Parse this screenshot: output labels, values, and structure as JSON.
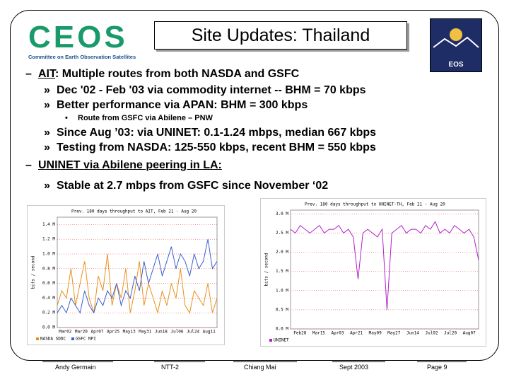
{
  "header": {
    "title": "Site Updates: Thailand",
    "logo_text": "CEOS",
    "logo_subtitle": "Committee on Earth Observation Satellites",
    "badge": "EOS"
  },
  "bullets": [
    {
      "marker": "–",
      "lead": "AIT",
      "text": ": Multiple routes from both NASDA and GSFC"
    },
    {
      "marker": "»",
      "text": "Dec '02 - Feb '03 via commodity internet -- BHM = 70 kbps"
    },
    {
      "marker": "»",
      "text": "Better performance via APAN: BHM = 300 kbps"
    },
    {
      "marker": "•",
      "text": "Route from GSFC via Abilene – PNW"
    },
    {
      "marker": "»",
      "text": "Since Aug ’03:  via UNINET: 0.1-1.24 mbps, median 667 kbps"
    },
    {
      "marker": "»",
      "text": "Testing from NASDA: 125-550 kbps, recent BHM = 550 kbps"
    },
    {
      "marker": "–",
      "lead": "UNINET via Abilene peering in LA:",
      "text": ""
    },
    {
      "marker": "»",
      "text": "Stable at 2.7 mbps from GSFC since November ‘02"
    }
  ],
  "charts": [
    {
      "type": "line",
      "title": "Prev. 180 days throughput to AIT, Feb 21 - Aug 20",
      "ylabel": "bits / second",
      "categories": [
        "Mar02",
        "Mar20",
        "Apr07",
        "Apr25",
        "May13",
        "May31",
        "Jun18",
        "Jul06",
        "Jul24",
        "Aug11"
      ],
      "ylim": [
        0,
        1.5
      ],
      "yticks": [
        {
          "value": 0,
          "label": "0.0 M"
        },
        {
          "value": 0.2,
          "label": "0.2 M"
        },
        {
          "value": 0.4,
          "label": "0.4 M"
        },
        {
          "value": 0.6,
          "label": "0.6 M"
        },
        {
          "value": 0.8,
          "label": "0.8 M"
        },
        {
          "value": 1.0,
          "label": "1.0 M"
        },
        {
          "value": 1.2,
          "label": "1.2 M"
        },
        {
          "value": 1.4,
          "label": "1.4 M"
        }
      ],
      "grid": true,
      "series": [
        {
          "name": "NASDA SDDC",
          "color": "#e8901a",
          "values": [
            0.3,
            0.5,
            0.4,
            0.8,
            0.3,
            0.6,
            0.9,
            0.4,
            0.2,
            0.7,
            0.5,
            1.0,
            0.3,
            0.6,
            0.4,
            0.8,
            0.2,
            0.5,
            0.9,
            0.3,
            0.6,
            0.4,
            0.2,
            0.5,
            0.3,
            0.6,
            0.4,
            0.8,
            0.3,
            0.2,
            0.5,
            0.4,
            0.3,
            0.6,
            0.2,
            0.4
          ]
        },
        {
          "name": "GSFC NPI",
          "color": "#3a5fd0",
          "values": [
            0.2,
            0.3,
            0.2,
            0.4,
            0.3,
            0.2,
            0.5,
            0.3,
            0.2,
            0.4,
            0.3,
            0.5,
            0.4,
            0.6,
            0.3,
            0.5,
            0.4,
            0.7,
            0.5,
            0.9,
            0.6,
            0.8,
            1.0,
            0.7,
            0.9,
            1.1,
            0.8,
            1.0,
            0.9,
            0.7,
            1.0,
            0.8,
            0.9,
            1.2,
            0.8,
            0.9
          ]
        }
      ]
    },
    {
      "type": "line",
      "title": "Prev. 180 days throughput to UNINET-TH, Feb 21 - Aug 20",
      "ylabel": "bits / second",
      "categories": [
        "Feb28",
        "Mar15",
        "Apr03",
        "Apr21",
        "May09",
        "May27",
        "Jun14",
        "Jul02",
        "Jul20",
        "Aug07"
      ],
      "ylim": [
        0,
        3.1
      ],
      "yticks": [
        {
          "value": 0,
          "label": "0.0 M"
        },
        {
          "value": 0.5,
          "label": "0.5 M"
        },
        {
          "value": 1.0,
          "label": "1.0 M"
        },
        {
          "value": 1.5,
          "label": "1.5 M"
        },
        {
          "value": 2.0,
          "label": "2.0 M"
        },
        {
          "value": 2.5,
          "label": "2.5 M"
        },
        {
          "value": 3.0,
          "label": "3.0 M"
        }
      ],
      "grid": true,
      "series": [
        {
          "name": "UNINET",
          "color": "#b020c8",
          "values": [
            2.6,
            2.5,
            2.7,
            2.6,
            2.5,
            2.6,
            2.7,
            2.5,
            2.6,
            2.6,
            2.7,
            2.5,
            2.6,
            2.4,
            1.3,
            2.5,
            2.6,
            2.5,
            2.4,
            2.6,
            0.5,
            2.5,
            2.6,
            2.7,
            2.5,
            2.6,
            2.6,
            2.5,
            2.7,
            2.6,
            2.8,
            2.5,
            2.6,
            2.5,
            2.7,
            2.6,
            2.5,
            2.6,
            2.4,
            1.8
          ]
        }
      ]
    }
  ],
  "footer": [
    "Andy Germain",
    "NTT-2",
    "Chiang Mai",
    "Sept 2003",
    "Page 9"
  ]
}
